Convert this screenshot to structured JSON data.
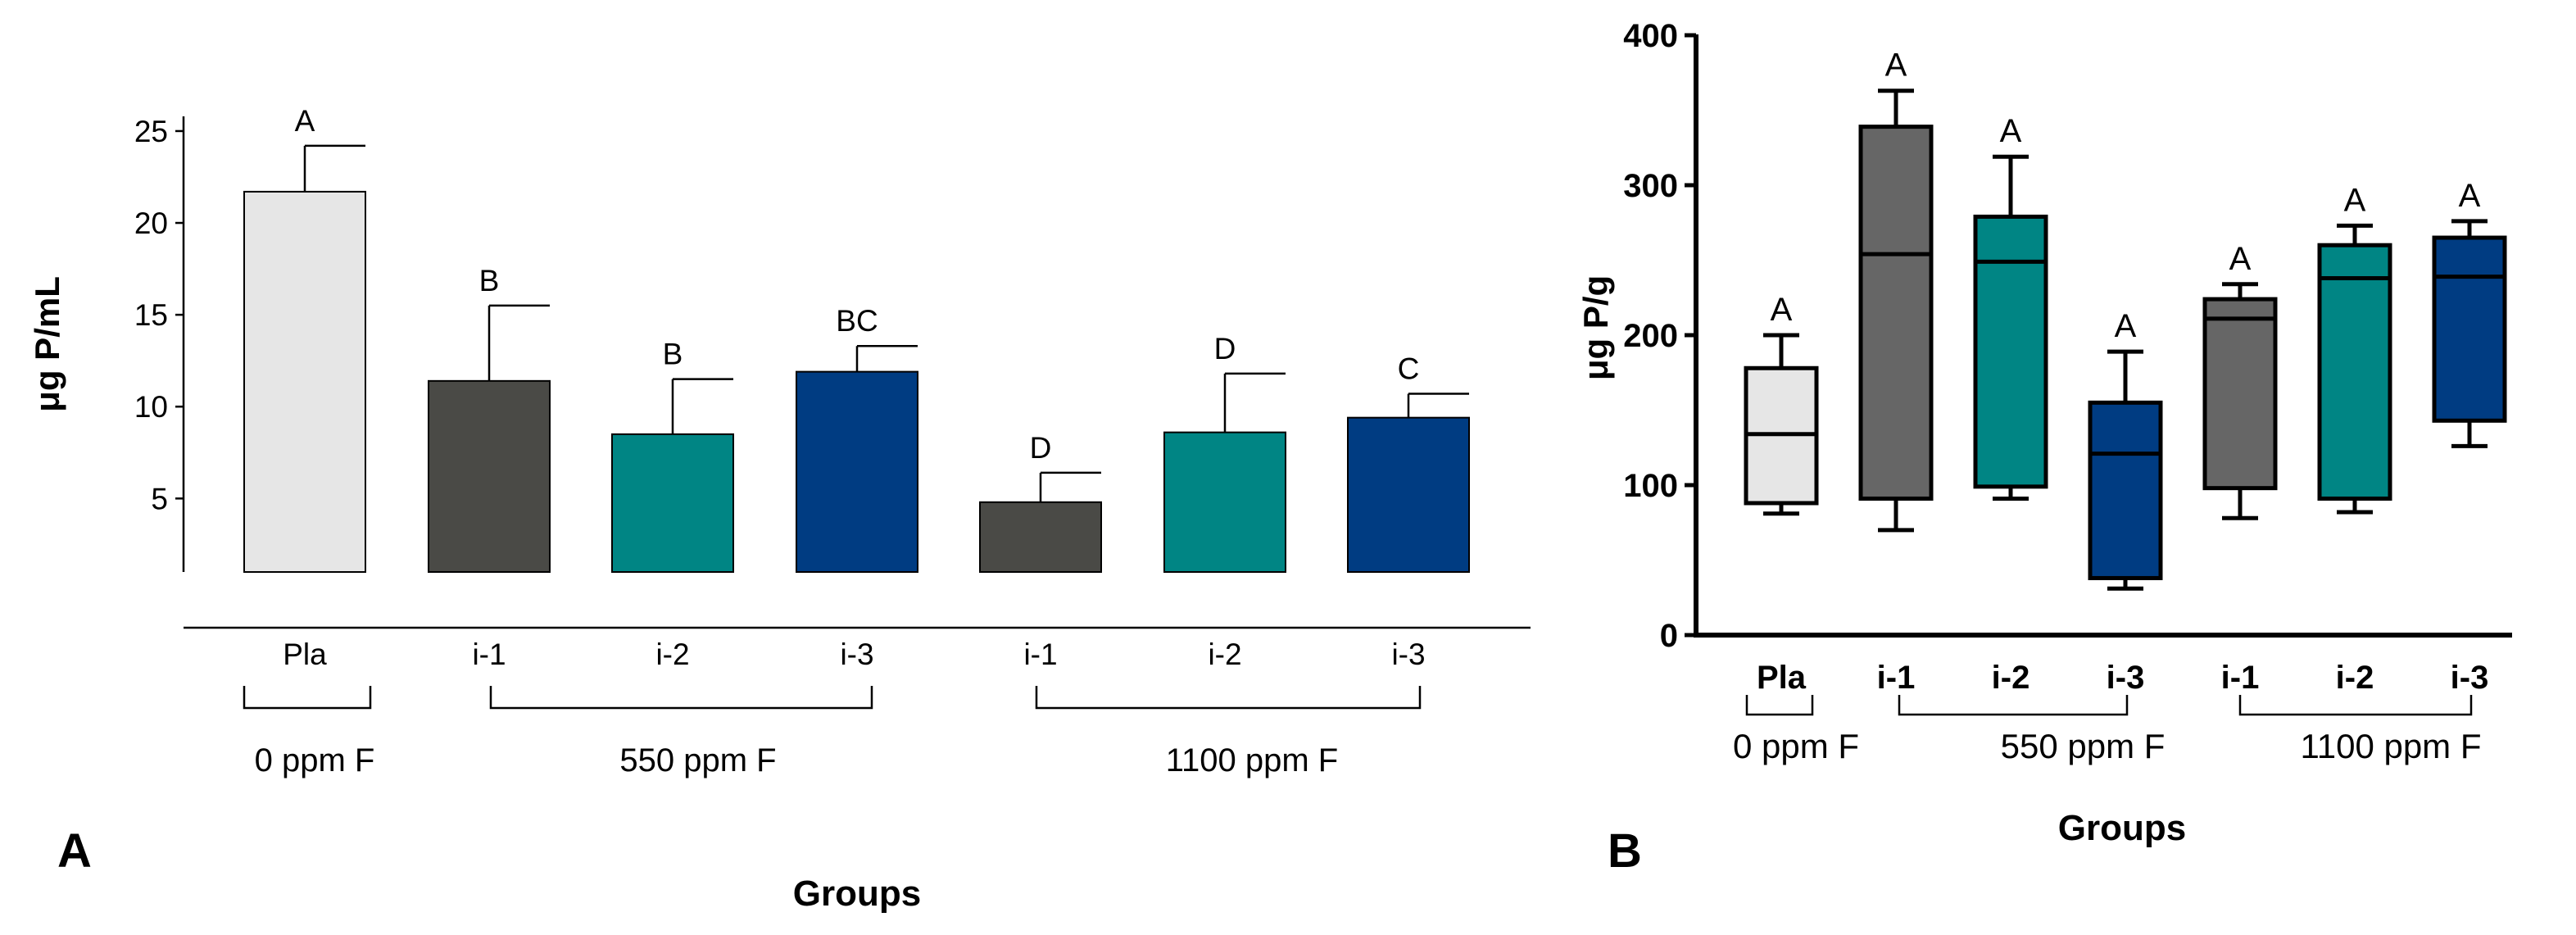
{
  "colors": {
    "placebo": "#e6e6e6",
    "i1": "#4a4a46",
    "i1_box": "#666666",
    "i2": "#008584",
    "i3": "#003c82"
  },
  "chart_data": [
    {
      "type": "bar",
      "panel_label": "A",
      "xlabel": "Groups",
      "ylabel": "μg P/mL",
      "yticks": [
        5,
        10,
        15,
        20,
        25
      ],
      "ylim": [
        1,
        25
      ],
      "categories": [
        "Pla",
        "i-1",
        "i-2",
        "i-3",
        "i-1",
        "i-2",
        "i-3"
      ],
      "values": [
        21.7,
        11.4,
        8.5,
        11.9,
        4.8,
        8.6,
        9.4
      ],
      "errors": [
        2.5,
        4.1,
        3.0,
        1.4,
        1.6,
        3.2,
        1.3
      ],
      "letters": [
        "A",
        "B",
        "B",
        "BC",
        "D",
        "D",
        "C"
      ],
      "colorKeys": [
        "placebo",
        "i1",
        "i2",
        "i3",
        "i1",
        "i2",
        "i3"
      ],
      "groups": [
        {
          "label": "0 ppm F",
          "from": 0,
          "to": 0
        },
        {
          "label": "550 ppm F",
          "from": 1,
          "to": 3
        },
        {
          "label": "1100 ppm F",
          "from": 4,
          "to": 6
        }
      ]
    },
    {
      "type": "box",
      "panel_label": "B",
      "xlabel": "Groups",
      "ylabel": "μg P/g",
      "yticks": [
        0,
        100,
        200,
        300,
        400
      ],
      "ylim": [
        0,
        400
      ],
      "categories": [
        "Pla",
        "i-1",
        "i-2",
        "i-3",
        "i-1",
        "i-2",
        "i-3"
      ],
      "boxes": [
        {
          "min": 81,
          "q1": 88,
          "median": 134,
          "q3": 178,
          "max": 200
        },
        {
          "min": 70,
          "q1": 91,
          "median": 254,
          "q3": 339,
          "max": 363
        },
        {
          "min": 91,
          "q1": 99,
          "median": 249,
          "q3": 279,
          "max": 319
        },
        {
          "min": 31,
          "q1": 38,
          "median": 121,
          "q3": 155,
          "max": 189
        },
        {
          "min": 78,
          "q1": 98,
          "median": 211,
          "q3": 224,
          "max": 234
        },
        {
          "min": 82,
          "q1": 91,
          "median": 238,
          "q3": 260,
          "max": 273
        },
        {
          "min": 126,
          "q1": 143,
          "median": 239,
          "q3": 265,
          "max": 276
        }
      ],
      "letters": [
        "A",
        "A",
        "A",
        "A",
        "A",
        "A",
        "A"
      ],
      "colorKeys": [
        "placebo",
        "i1_box",
        "i2",
        "i3",
        "i1_box",
        "i2",
        "i3"
      ],
      "groups": [
        {
          "label": "0 ppm F",
          "from": 0,
          "to": 0
        },
        {
          "label": "550 ppm F",
          "from": 1,
          "to": 3
        },
        {
          "label": "1100 ppm F",
          "from": 4,
          "to": 6
        }
      ]
    }
  ]
}
